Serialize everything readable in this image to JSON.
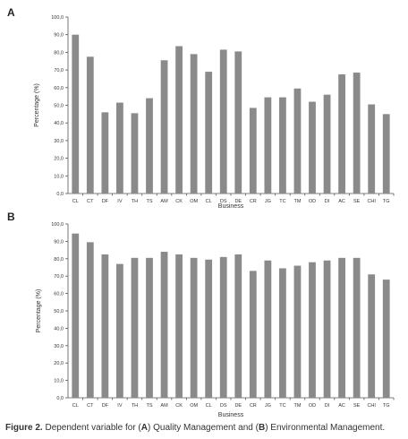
{
  "caption": {
    "label": "Figure 2.",
    "text_1": " Dependent variable for (",
    "a": "A",
    "text_2": ") Quality Management and (",
    "b": "B",
    "text_3": ") Environmental Management."
  },
  "chart_data": [
    {
      "type": "bar",
      "panel_label": "A",
      "title": "",
      "xlabel": "Business",
      "ylabel": "Percentage (%)",
      "ylim": [
        0,
        100
      ],
      "yticks": [
        "0,0",
        "10,0",
        "20,0",
        "30,0",
        "40,0",
        "50,0",
        "60,0",
        "70,0",
        "80,0",
        "90,0",
        "100,0"
      ],
      "grid": false,
      "categories": [
        "CL",
        "CT",
        "DF",
        "IV",
        "TH",
        "TS",
        "AM",
        "CK",
        "OM",
        "CL",
        "DS",
        "DE",
        "CR",
        "JG",
        "TC",
        "TM",
        "OD",
        "DI",
        "AC",
        "SE",
        "CHI",
        "TG"
      ],
      "values": [
        90.0,
        77.5,
        46.0,
        51.5,
        45.5,
        54.0,
        75.5,
        83.5,
        79.0,
        69.0,
        81.5,
        80.5,
        48.5,
        54.5,
        54.5,
        59.5,
        52.0,
        56.0,
        67.5,
        68.5,
        50.5,
        45.0
      ]
    },
    {
      "type": "bar",
      "panel_label": "B",
      "title": "",
      "xlabel": "Business",
      "ylabel": "Percentage (%)",
      "ylim": [
        0,
        100
      ],
      "yticks": [
        "0,0",
        "10,0",
        "20,0",
        "30,0",
        "40,0",
        "50,0",
        "60,0",
        "70,0",
        "80,0",
        "90,0",
        "100,0"
      ],
      "grid": false,
      "categories": [
        "CL",
        "CT",
        "DF",
        "IV",
        "TH",
        "TS",
        "AM",
        "CK",
        "OM",
        "CL",
        "DS",
        "DE",
        "CR",
        "JG",
        "TC",
        "TM",
        "OD",
        "DI",
        "AC",
        "SE",
        "CHI",
        "TG"
      ],
      "values": [
        94.5,
        89.5,
        82.5,
        77.0,
        80.5,
        80.5,
        84.0,
        82.5,
        80.5,
        79.5,
        81.0,
        82.5,
        73.0,
        79.0,
        74.5,
        76.0,
        78.0,
        79.0,
        80.5,
        80.5,
        71.0,
        68.0
      ]
    }
  ]
}
